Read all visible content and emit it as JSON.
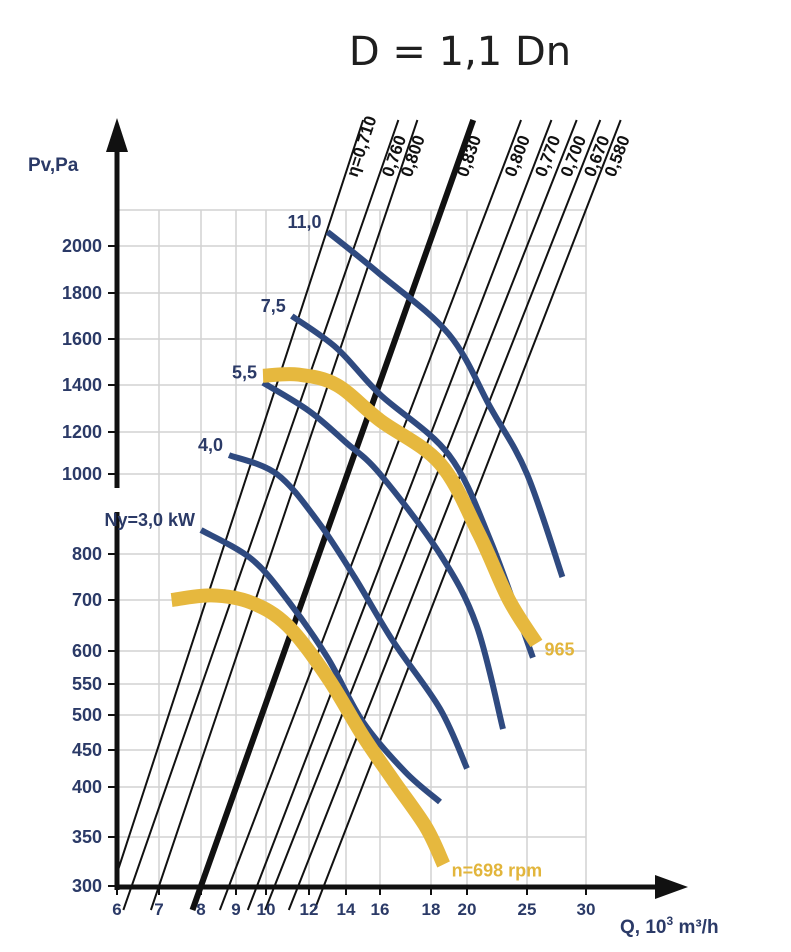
{
  "chart_data": {
    "type": "line",
    "title": "D = 1,1 Dn",
    "ylabel": "Pv,Pa",
    "xlabel_main": "Q, 10",
    "xlabel_sup": "3",
    "xlabel_unit": " m³/h",
    "x_ticks": [
      6,
      7,
      8,
      9,
      10,
      12,
      14,
      16,
      18,
      20,
      25,
      30
    ],
    "y_ticks": [
      300,
      350,
      400,
      450,
      500,
      550,
      600,
      700,
      800,
      1000,
      1200,
      1400,
      1600,
      1800,
      2000
    ],
    "efficiency_lines": [
      {
        "label": "η=0,710",
        "x_at_300": 5.9,
        "x_at_2000": 12.7
      },
      {
        "label": "0,760",
        "x_at_300": 6.35,
        "x_at_2000": 14.5
      },
      {
        "label": "0,800",
        "x_at_300": 7.0,
        "x_at_2000": 15.7
      },
      {
        "label": "0,830",
        "x_at_300": 8.0,
        "x_at_2000": 17.9,
        "bold": true
      },
      {
        "label": "0,800",
        "x_at_300": 8.8,
        "x_at_2000": 20.5
      },
      {
        "label": "0,770",
        "x_at_300": 9.7,
        "x_at_2000": 23.0
      },
      {
        "label": "0,700",
        "x_at_300": 10.4,
        "x_at_2000": 25.0
      },
      {
        "label": "0,670",
        "x_at_300": 11.5,
        "x_at_2000": 27.0
      },
      {
        "label": "0,580",
        "x_at_300": 12.8,
        "x_at_2000": 28.8
      }
    ],
    "power_curves": [
      {
        "label": "11,0",
        "points": [
          [
            13.0,
            2060
          ],
          [
            16.0,
            1880
          ],
          [
            19.0,
            1620
          ],
          [
            22.0,
            1300
          ],
          [
            25.0,
            1000
          ],
          [
            28.0,
            750
          ]
        ]
      },
      {
        "label": "7,5",
        "points": [
          [
            11.2,
            1700
          ],
          [
            13.5,
            1560
          ],
          [
            16.0,
            1360
          ],
          [
            19.0,
            1090
          ],
          [
            22.0,
            830
          ],
          [
            25.5,
            590
          ]
        ]
      },
      {
        "label": "5,5",
        "points": [
          [
            9.9,
            1410
          ],
          [
            12.0,
            1290
          ],
          [
            14.0,
            1150
          ],
          [
            16.0,
            1000
          ],
          [
            18.5,
            800
          ],
          [
            20.8,
            650
          ],
          [
            23.0,
            480
          ]
        ]
      },
      {
        "label": "4,0",
        "points": [
          [
            8.8,
            1090
          ],
          [
            10.5,
            1000
          ],
          [
            12.5,
            880
          ],
          [
            14.5,
            750
          ],
          [
            16.5,
            620
          ],
          [
            18.5,
            510
          ],
          [
            20.0,
            425
          ]
        ]
      },
      {
        "label": "Ny=3,0 kW",
        "points": [
          [
            8.0,
            860
          ],
          [
            9.5,
            790
          ],
          [
            11.0,
            700
          ],
          [
            13.0,
            590
          ],
          [
            15.0,
            490
          ],
          [
            17.0,
            420
          ],
          [
            18.5,
            385
          ]
        ]
      }
    ],
    "speed_curves": [
      {
        "label": "965",
        "points": [
          [
            9.9,
            1440
          ],
          [
            11.5,
            1445
          ],
          [
            13.5,
            1400
          ],
          [
            16.0,
            1250
          ],
          [
            18.5,
            1050
          ],
          [
            21.0,
            850
          ],
          [
            23.5,
            700
          ],
          [
            25.8,
            615
          ]
        ]
      },
      {
        "label": "n=698 rpm",
        "points": [
          [
            7.3,
            700
          ],
          [
            8.3,
            710
          ],
          [
            9.5,
            695
          ],
          [
            11.0,
            650
          ],
          [
            13.0,
            560
          ],
          [
            15.0,
            470
          ],
          [
            16.5,
            410
          ],
          [
            17.8,
            360
          ],
          [
            18.7,
            322
          ]
        ]
      }
    ]
  }
}
